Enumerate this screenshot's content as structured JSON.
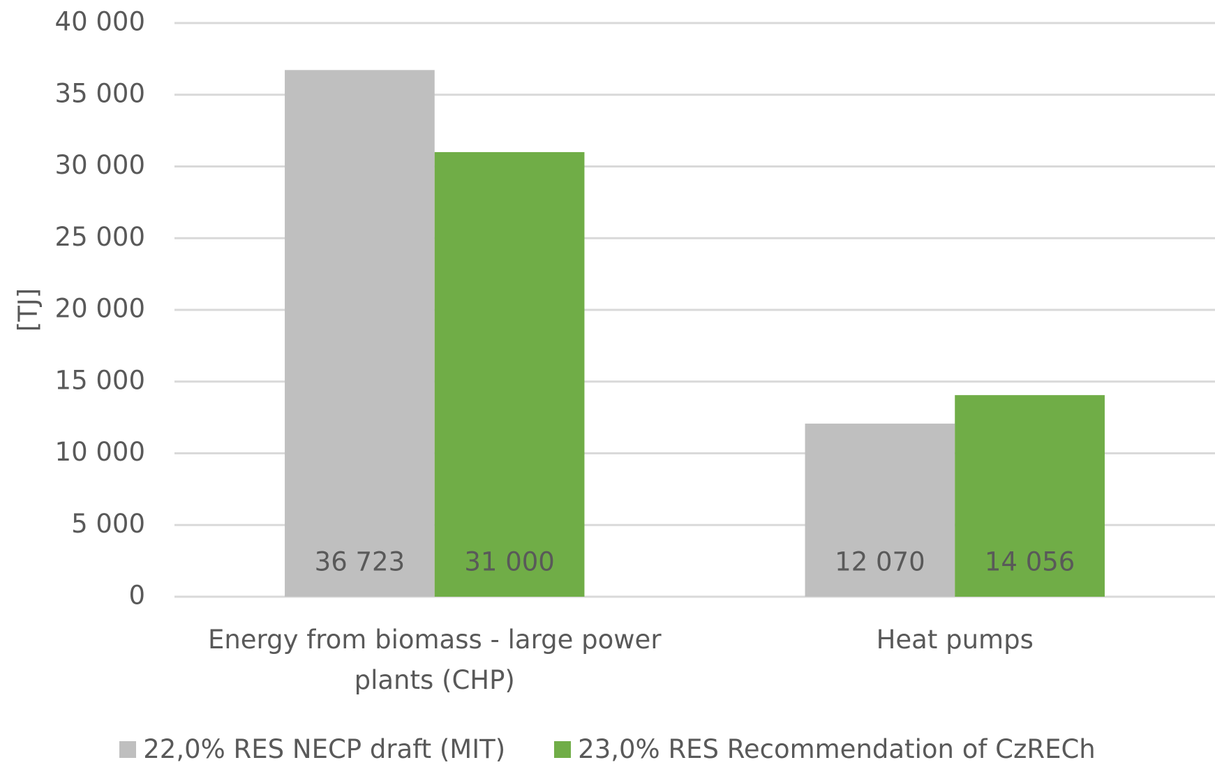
{
  "chart_data": {
    "type": "bar",
    "y_label": "[TJ]",
    "categories": [
      "Energy from biomass - large power plants  (CHP)",
      "Heat pumps"
    ],
    "series": [
      {
        "name": "22,0% RES NECP draft (MIT)",
        "color": "#bfbfbf",
        "values": [
          36723,
          12070
        ],
        "value_labels": [
          "36 723",
          "12 070"
        ]
      },
      {
        "name": "23,0% RES Recommendation of CzRECh",
        "color": "#70ad47",
        "values": [
          31000,
          14056
        ],
        "value_labels": [
          "31 000",
          "14 056"
        ]
      }
    ],
    "ylim": [
      0,
      40000
    ],
    "yticks": [
      0,
      {
        "value": 5000,
        "label": "5 000"
      },
      {
        "value": 10000,
        "label": "10 000"
      },
      {
        "value": 15000,
        "label": "15 000"
      },
      {
        "value": 20000,
        "label": "20 000"
      },
      {
        "value": 25000,
        "label": "25 000"
      },
      {
        "value": 30000,
        "label": "30 000"
      },
      {
        "value": 35000,
        "label": "35 000"
      },
      {
        "value": 40000,
        "label": "40 000"
      }
    ],
    "grid": true,
    "legend": "bottom"
  }
}
